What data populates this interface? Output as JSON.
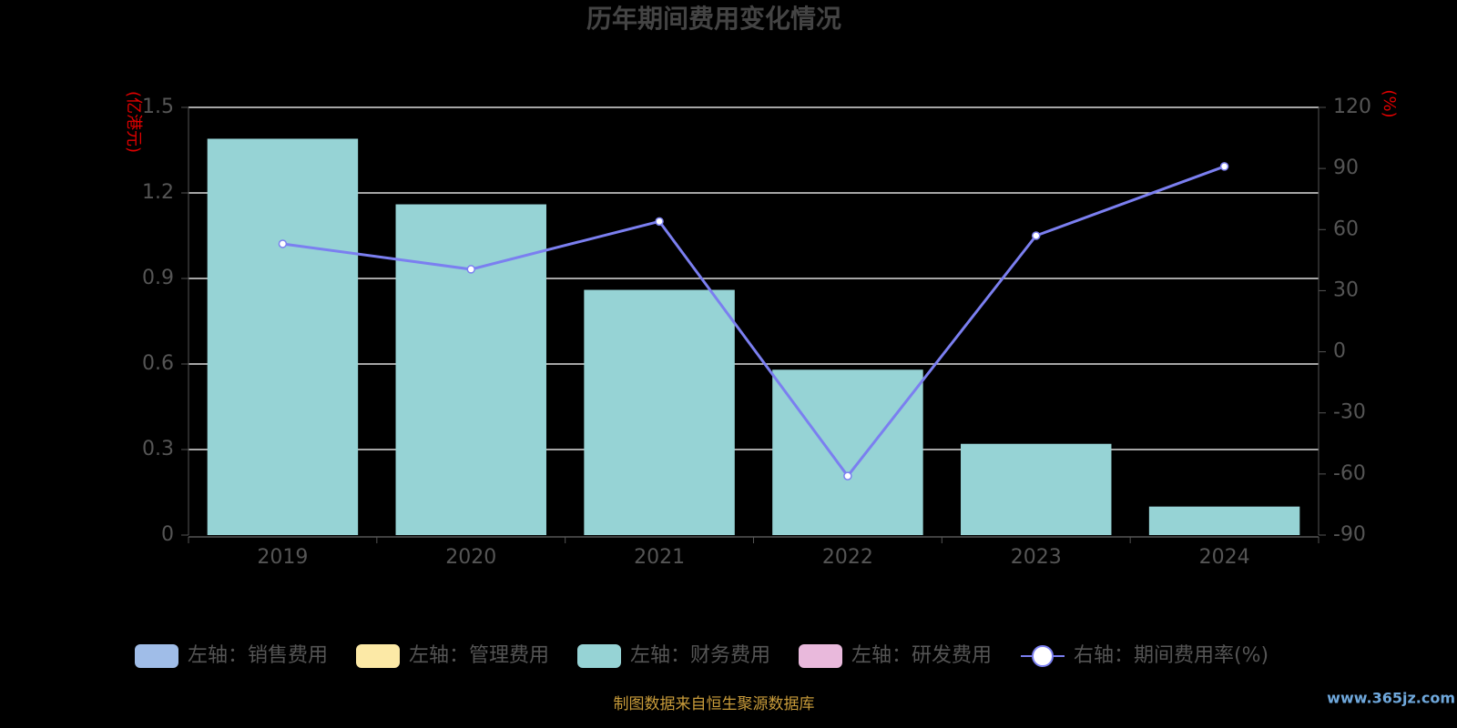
{
  "chart_data": {
    "type": "bar_line",
    "title": "历年期间费用变化情况",
    "y_label": "(亿港元)",
    "y2_label": "(%)",
    "source": "制图数据来自恒生聚源数据库",
    "watermark": "www.365jz.com",
    "categories": [
      "2019",
      "2020",
      "2021",
      "2022",
      "2023",
      "2024"
    ],
    "series": [
      {
        "name": "左轴：销售费用",
        "color": "#a0bde8",
        "type": "bar",
        "values": [
          null,
          null,
          null,
          null,
          null,
          null
        ]
      },
      {
        "name": "左轴：管理费用",
        "color": "#fce9a6",
        "type": "bar",
        "values": [
          null,
          null,
          null,
          null,
          null,
          null
        ]
      },
      {
        "name": "左轴：财务费用",
        "color": "#96d3d5",
        "type": "bar",
        "values": [
          1.39,
          1.16,
          0.86,
          0.58,
          0.32,
          0.1
        ]
      },
      {
        "name": "左轴：研发费用",
        "color": "#e9b9dc",
        "type": "bar",
        "values": [
          null,
          null,
          null,
          null,
          null,
          null
        ]
      },
      {
        "name": "右轴：期间费用率(%)",
        "color": "#7b7ff0",
        "type": "line",
        "axis": "y2",
        "values": [
          53,
          40.5,
          64,
          -61,
          57,
          91
        ]
      }
    ],
    "ylim": [
      0,
      1.5
    ],
    "yticks": [
      0,
      0.3,
      0.6,
      0.9,
      1.2,
      1.5
    ],
    "y2lim": [
      -90,
      120
    ],
    "y2ticks": [
      -90,
      -60,
      -30,
      0,
      30,
      60,
      90,
      120
    ],
    "grid": true
  }
}
